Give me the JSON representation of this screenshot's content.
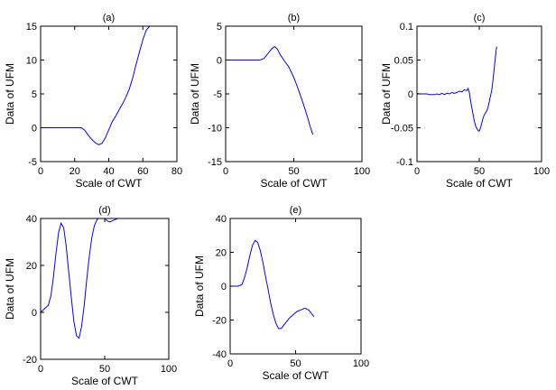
{
  "line_color": "#0000ff",
  "chart_data": [
    {
      "type": "line",
      "title": "(a)",
      "xlabel": "Scale of CWT",
      "ylabel": "Data of UFM",
      "xlim": [
        0,
        80
      ],
      "ylim": [
        -5,
        15
      ],
      "xticks": [
        0,
        20,
        40,
        60,
        80
      ],
      "yticks": [
        -5,
        0,
        5,
        10,
        15
      ],
      "x": [
        0,
        5,
        10,
        15,
        20,
        24,
        26,
        28,
        30,
        32,
        34,
        36,
        38,
        40,
        42,
        44,
        46,
        48,
        50,
        52,
        54,
        56,
        58,
        60,
        62,
        64
      ],
      "y": [
        0,
        0,
        0,
        0,
        0,
        0,
        -0.4,
        -1.1,
        -1.7,
        -2.2,
        -2.5,
        -2.3,
        -1.5,
        -0.3,
        0.9,
        1.7,
        2.6,
        3.5,
        4.5,
        5.7,
        7.3,
        9.3,
        11.2,
        13.0,
        14.4,
        15.0
      ]
    },
    {
      "type": "line",
      "title": "(b)",
      "xlabel": "Scale of CWT",
      "ylabel": "Data of UFM",
      "xlim": [
        0,
        100
      ],
      "ylim": [
        -15,
        5
      ],
      "xticks": [
        0,
        50,
        100
      ],
      "yticks": [
        -15,
        -10,
        -5,
        0,
        5
      ],
      "x": [
        0,
        10,
        20,
        25,
        28,
        30,
        32,
        34,
        36,
        38,
        40,
        42,
        44,
        46,
        48,
        50,
        52,
        54,
        56,
        58,
        60,
        62,
        64
      ],
      "y": [
        0,
        0,
        0,
        0,
        0.2,
        0.7,
        1.2,
        1.7,
        2.0,
        1.6,
        0.8,
        0.2,
        -0.4,
        -0.9,
        -1.7,
        -2.6,
        -3.6,
        -4.7,
        -5.9,
        -7.1,
        -8.4,
        -9.8,
        -11.0
      ]
    },
    {
      "type": "line",
      "title": "(c)",
      "xlabel": "Scale of CWT",
      "ylabel": "Data of UFM",
      "xlim": [
        0,
        100
      ],
      "ylim": [
        -0.1,
        0.1
      ],
      "xticks": [
        0,
        50,
        100
      ],
      "yticks": [
        -0.1,
        -0.05,
        0,
        0.05,
        0.1
      ],
      "x": [
        0,
        2,
        4,
        6,
        8,
        10,
        12,
        14,
        16,
        18,
        20,
        22,
        24,
        26,
        28,
        30,
        32,
        34,
        36,
        38,
        40,
        41,
        42,
        43,
        44,
        45,
        46,
        47,
        48,
        49,
        50,
        51,
        52,
        53,
        54,
        55,
        56,
        57,
        58,
        59,
        60,
        61,
        62,
        63,
        64
      ],
      "y": [
        0.001,
        0.0,
        0.0,
        0.0,
        0.0,
        -0.001,
        -0.001,
        -0.001,
        0.0,
        -0.001,
        0.001,
        -0.001,
        0.001,
        0.0,
        0.002,
        0.001,
        0.002,
        0.004,
        0.003,
        0.006,
        0.005,
        0.008,
        0.002,
        -0.01,
        -0.02,
        -0.03,
        -0.04,
        -0.047,
        -0.051,
        -0.054,
        -0.055,
        -0.05,
        -0.043,
        -0.036,
        -0.031,
        -0.028,
        -0.025,
        -0.02,
        -0.012,
        -0.003,
        0.005,
        0.02,
        0.038,
        0.055,
        0.07
      ]
    },
    {
      "type": "line",
      "title": "(d)",
      "xlabel": "Scale of CWT",
      "ylabel": "Data of UFM",
      "xlim": [
        0,
        100
      ],
      "ylim": [
        -20,
        40
      ],
      "xticks": [
        0,
        50,
        100
      ],
      "yticks": [
        -20,
        0,
        20,
        40
      ],
      "x": [
        0,
        2,
        4,
        6,
        8,
        10,
        12,
        14,
        16,
        18,
        20,
        22,
        24,
        26,
        28,
        30,
        32,
        34,
        36,
        38,
        40,
        42,
        44,
        46,
        48,
        50,
        52,
        54,
        56,
        58,
        60,
        62,
        64
      ],
      "y": [
        0,
        1,
        2,
        3,
        7,
        15,
        25,
        34,
        38,
        36,
        28,
        17,
        6,
        -4,
        -10,
        -11,
        -6,
        3,
        14,
        24,
        32,
        37,
        39.5,
        40.5,
        41,
        40,
        39,
        38.5,
        39,
        39.5,
        40,
        40.5,
        41
      ]
    },
    {
      "type": "line",
      "title": "(e)",
      "xlabel": "Scale of CWT",
      "ylabel": "Data of UFM",
      "xlim": [
        0,
        100
      ],
      "ylim": [
        -40,
        40
      ],
      "xticks": [
        0,
        50,
        100
      ],
      "yticks": [
        -40,
        -20,
        0,
        20,
        40
      ],
      "x": [
        0,
        3,
        6,
        9,
        11,
        13,
        15,
        17,
        19,
        21,
        23,
        25,
        27,
        29,
        31,
        33,
        35,
        37,
        39,
        41,
        43,
        45,
        48,
        51,
        54,
        57,
        60,
        62,
        64
      ],
      "y": [
        0,
        0,
        0,
        1,
        5,
        11,
        18,
        24,
        27,
        26,
        21,
        14,
        6,
        -2,
        -10,
        -17,
        -22,
        -25,
        -25,
        -23,
        -21,
        -19,
        -17,
        -15,
        -14,
        -13,
        -14,
        -16,
        -18
      ]
    }
  ]
}
